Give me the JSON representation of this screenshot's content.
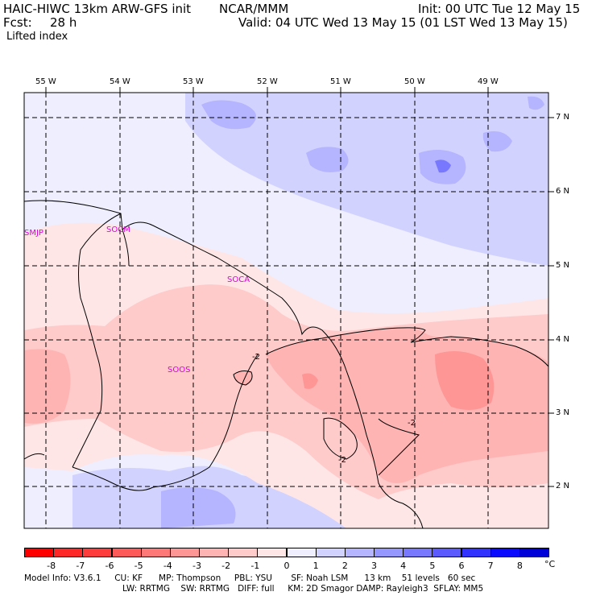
{
  "header": {
    "model": "HAIC-HIWC 13km ARW-GFS init",
    "center": "NCAR/MMM",
    "init": "Init: 00 UTC Tue 12 May 15",
    "fcst_label": "Fcst:",
    "fcst_value": "28 h",
    "valid": "Valid: 04 UTC Wed 13 May 15 (01 LST Wed 13 May 15)",
    "field": "Lifted index"
  },
  "lon_labels": [
    "55 W",
    "54 W",
    "53 W",
    "52 W",
    "51 W",
    "50 W",
    "49 W"
  ],
  "lat_labels": [
    "7 N",
    "6 N",
    "5 N",
    "4 N",
    "3 N",
    "2 N"
  ],
  "stations": [
    "SMJP",
    "SOCM",
    "SOCA",
    "SOOS"
  ],
  "contour_labels": [
    "-2",
    "-2",
    "-2"
  ],
  "legend": {
    "labels": [
      "-8",
      "-7",
      "-6",
      "-5",
      "-4",
      "-3",
      "-2",
      "-1",
      "0",
      "1",
      "2",
      "3",
      "4",
      "5",
      "6",
      "7",
      "8"
    ],
    "unit": "°C",
    "colors": [
      "#ff0000",
      "#ff2828",
      "#ff3c3c",
      "#ff5a5a",
      "#ff7878",
      "#ff9696",
      "#ffb4b4",
      "#ffcaca",
      "#ffe6e6",
      "#eeeeff",
      "#d2d2ff",
      "#b4b4ff",
      "#9696ff",
      "#7878ff",
      "#5a5aff",
      "#3232ff",
      "#0a0aff",
      "#0000d8"
    ]
  },
  "footer": {
    "line1": "Model Info: V3.6.1     CU: KF      MP: Thompson     PBL: YSU       SF: Noah LSM      13 km    51 levels   60 sec",
    "line2": "LW: RRTMG    SW: RRTMG   DIFF: full     KM: 2D Smagor DAMP: Rayleigh3  SFLAY: MM5"
  }
}
